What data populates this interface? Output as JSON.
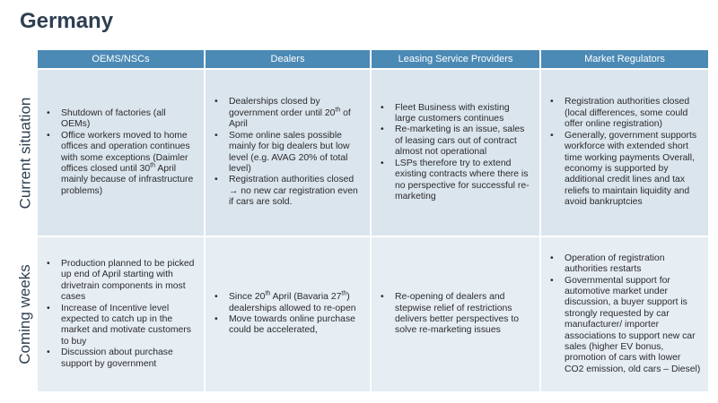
{
  "title": "Germany",
  "table": {
    "columns": [
      "OEMS/NSCs",
      "Dealers",
      "Leasing Service Providers",
      "Market Regulators"
    ],
    "rows": [
      {
        "label": "Current situation",
        "cells": [
          [
            [
              "Shutdown of factories (all OEMs)"
            ],
            [
              "Office workers moved to home offices and operation continues with some exceptions (Daimler offices closed until 30",
              {
                "sup": "th"
              },
              " April mainly because of infrastructure problems)"
            ]
          ],
          [
            [
              "Dealerships closed by government order until 20",
              {
                "sup": "th"
              },
              " of April"
            ],
            [
              "Some online sales possible mainly for big dealers but low level (e.g. AVAG 20% of total level)"
            ],
            [
              "Registration authorities closed → no new car registration even if cars are sold."
            ]
          ],
          [
            [
              "Fleet Business with existing large customers continues"
            ],
            [
              "Re-marketing is an issue, sales of leasing cars out of contract almost not operational"
            ],
            [
              "LSPs therefore try to extend existing contracts where there is no perspective for successful re-marketing"
            ]
          ],
          [
            [
              "Registration authorities closed (local differences, some could offer online registration)"
            ],
            [
              "Generally, government supports workforce with extended short time working payments Overall, economy is supported by additional credit lines and tax reliefs to maintain liquidity and avoid bankruptcies"
            ]
          ]
        ]
      },
      {
        "label": "Coming weeks",
        "cells": [
          [
            [
              "Production planned to be picked up end of April starting with drivetrain components in most cases"
            ],
            [
              "Increase of Incentive level expected to catch up in the market and motivate customers to buy"
            ],
            [
              "Discussion about purchase support by government"
            ]
          ],
          [
            [
              "Since 20",
              {
                "sup": "th"
              },
              " April (Bavaria 27",
              {
                "sup": "th"
              },
              ") dealerships  allowed to re-open"
            ],
            [
              "Move towards online purchase could be accelerated,"
            ]
          ],
          [
            [
              "Re-opening of dealers and stepwise relief of restrictions delivers better perspectives to solve re-marketing issues"
            ]
          ],
          [
            [
              "Operation of registration authorities restarts"
            ],
            [
              "Governmental support for automotive market under discussion, a buyer support is strongly requested by car manufacturer/ importer associations to support new car sales (higher EV bonus, promotion of cars with lower CO2 emission, old cars – Diesel)"
            ]
          ]
        ]
      }
    ]
  }
}
